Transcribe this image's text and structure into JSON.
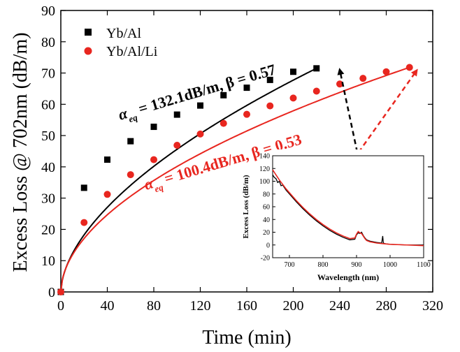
{
  "chart_data": [
    {
      "type": "scatter",
      "xlabel": "Time (min)",
      "ylabel": "Excess Loss @ 702nm (dB/m)",
      "xlim": [
        0,
        320
      ],
      "ylim": [
        0,
        90
      ],
      "xticks": [
        0,
        40,
        80,
        120,
        160,
        200,
        240,
        280,
        320
      ],
      "yticks": [
        0,
        10,
        20,
        30,
        40,
        50,
        60,
        70,
        80,
        90
      ],
      "legend_position": "top-left",
      "series": [
        {
          "name": "Yb/Al",
          "color": "#000000",
          "marker": "square",
          "x": [
            0,
            20,
            40,
            60,
            80,
            100,
            120,
            140,
            160,
            180,
            200,
            220
          ],
          "y": [
            0,
            33.3,
            42.3,
            48.2,
            52.8,
            56.7,
            59.6,
            62.9,
            65.3,
            67.8,
            70.4,
            71.5
          ],
          "fit": {
            "alpha_eq": 132.1,
            "beta": 0.57
          }
        },
        {
          "name": "Yb/Al/Li",
          "color": "#e8261f",
          "marker": "circle",
          "x": [
            0,
            20,
            40,
            60,
            80,
            100,
            120,
            140,
            160,
            180,
            200,
            220,
            240,
            260,
            280,
            300
          ],
          "y": [
            0,
            22.2,
            31.2,
            37.5,
            42.3,
            46.9,
            50.5,
            53.9,
            56.8,
            59.5,
            62.0,
            64.2,
            66.5,
            68.3,
            70.4,
            71.8
          ],
          "fit": {
            "alpha_eq": 100.4,
            "beta": 0.53
          }
        }
      ],
      "annotations": [
        {
          "prefix": "α",
          "sub": "eq",
          "text": " = 132.1dB/m, β = 0.57",
          "color": "#000000"
        },
        {
          "prefix": "α",
          "sub": "eq",
          "text": " = 100.4dB/m, β = 0.53",
          "color": "#e8261f"
        }
      ]
    },
    {
      "type": "line",
      "xlabel": "Wavelength (nm)",
      "ylabel": "Excess Loss (dB/m)",
      "xlim": [
        650,
        1100
      ],
      "ylim": [
        -20,
        140
      ],
      "xticks": [
        700,
        800,
        900,
        1000,
        1100
      ],
      "yticks": [
        -20,
        0,
        20,
        40,
        60,
        80,
        100,
        120,
        140
      ],
      "series": [
        {
          "color": "#000000",
          "x": [
            650,
            655,
            660,
            665,
            670,
            675,
            680,
            690,
            700,
            720,
            740,
            760,
            780,
            800,
            820,
            840,
            860,
            880,
            895,
            900,
            905,
            910,
            915,
            920,
            925,
            930,
            940,
            960,
            975,
            978,
            980,
            985,
            1000,
            1050,
            1100
          ],
          "y": [
            110,
            106,
            104,
            98,
            100,
            93,
            94,
            86,
            80,
            68,
            57,
            47,
            38,
            30,
            23,
            17,
            12,
            8,
            9,
            16,
            19,
            18,
            20,
            15,
            11,
            8,
            6,
            4,
            3,
            14,
            3,
            2,
            1,
            0,
            0
          ]
        },
        {
          "color": "#e8261f",
          "x": [
            650,
            660,
            670,
            680,
            690,
            700,
            720,
            740,
            760,
            780,
            800,
            820,
            840,
            860,
            880,
            895,
            900,
            905,
            910,
            915,
            920,
            925,
            930,
            940,
            960,
            980,
            1000,
            1050,
            1100
          ],
          "y": [
            118,
            110,
            102,
            95,
            88,
            82,
            70,
            59,
            49,
            40,
            32,
            25,
            19,
            14,
            10,
            11,
            17,
            21,
            19,
            18,
            14,
            10,
            7,
            5,
            3,
            2,
            1,
            0,
            -1
          ]
        }
      ]
    }
  ]
}
